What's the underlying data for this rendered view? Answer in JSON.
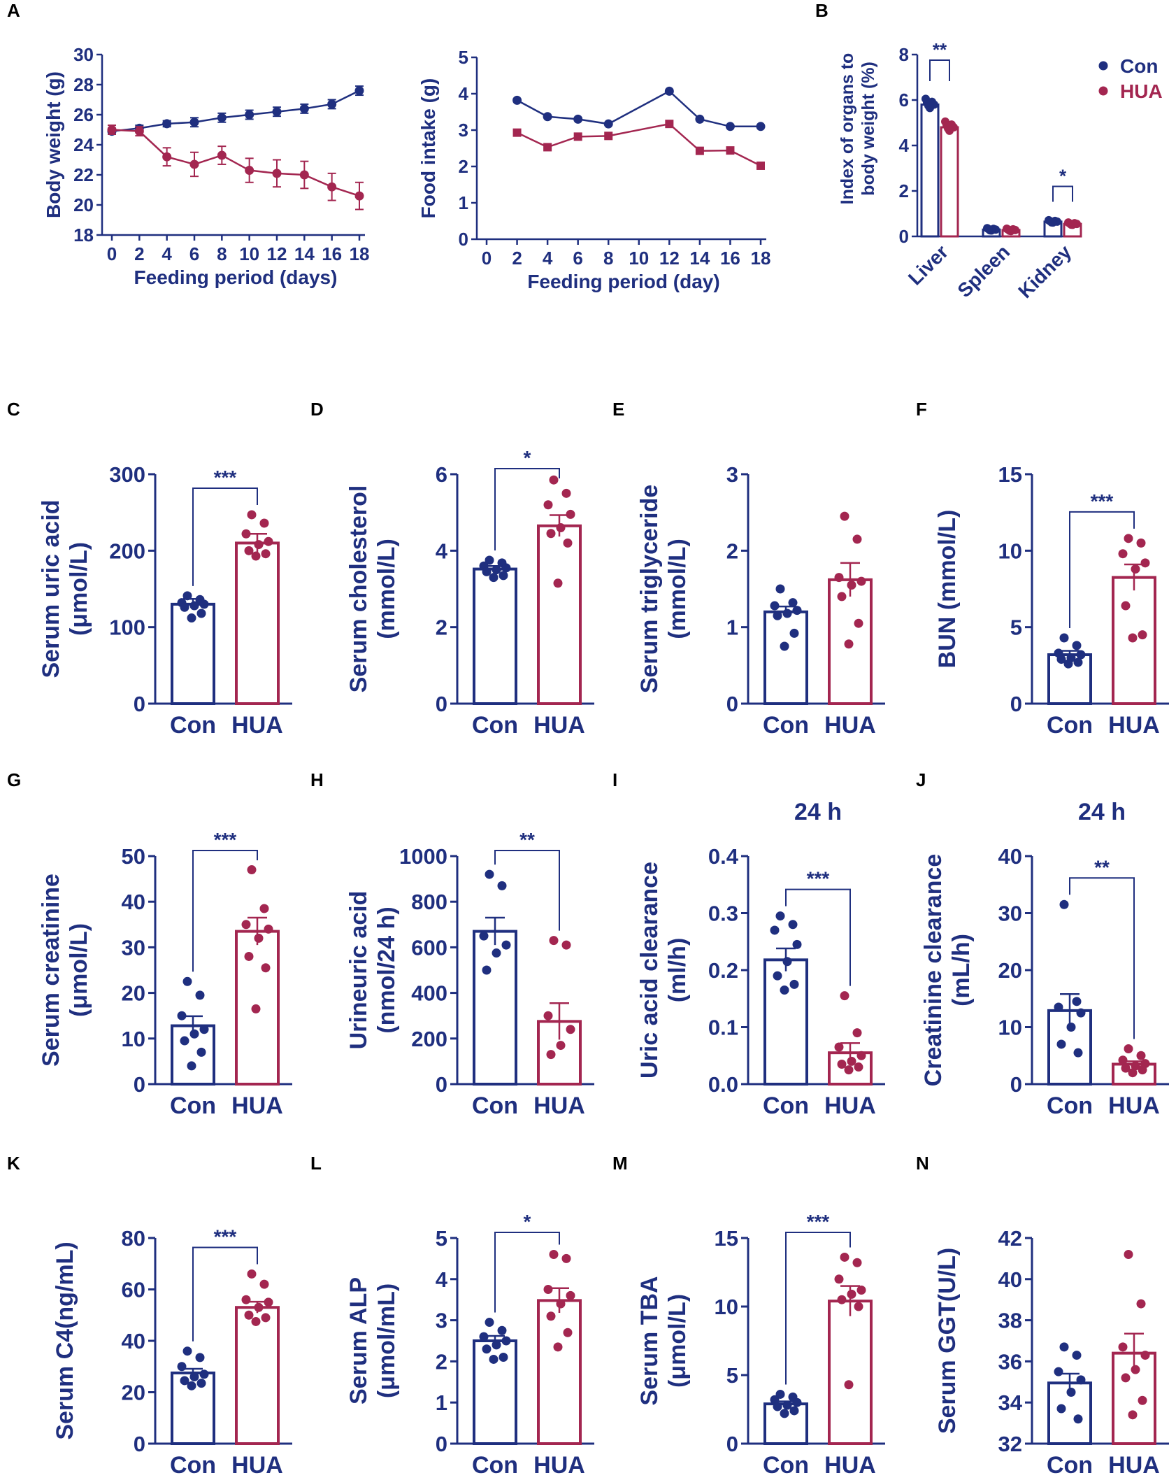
{
  "colors": {
    "con": "#1f2f7f",
    "hua": "#a32650",
    "text": "#1f2f7f",
    "letter": "#000000"
  },
  "panel_letters": [
    "A",
    "B",
    "C",
    "D",
    "E",
    "F",
    "G",
    "H",
    "I",
    "J",
    "K",
    "L",
    "M",
    "N"
  ],
  "legend": {
    "con": "Con",
    "hua": "HUA"
  },
  "chart_data": [
    {
      "id": "A1",
      "type": "line",
      "xlabel": "Feeding period (days)",
      "ylabel": "Body weight (g)",
      "ylim": [
        18,
        30
      ],
      "yticks": [
        18,
        20,
        22,
        24,
        26,
        28,
        30
      ],
      "xlim": [
        0,
        18
      ],
      "xticks": [
        0,
        2,
        4,
        6,
        8,
        10,
        12,
        14,
        16,
        18
      ],
      "x": [
        0,
        2,
        4,
        6,
        8,
        10,
        12,
        14,
        16,
        18
      ],
      "series": [
        {
          "group": "con",
          "values": [
            24.9,
            25.1,
            25.4,
            25.5,
            25.8,
            26.0,
            26.2,
            26.4,
            26.7,
            27.6
          ],
          "err": [
            0.2,
            0.2,
            0.2,
            0.3,
            0.3,
            0.3,
            0.3,
            0.3,
            0.3,
            0.3
          ]
        },
        {
          "group": "hua",
          "values": [
            25.0,
            24.9,
            23.2,
            22.7,
            23.3,
            22.3,
            22.1,
            22.0,
            21.2,
            20.6
          ],
          "err": [
            0.3,
            0.3,
            0.6,
            0.8,
            0.6,
            0.8,
            0.9,
            0.9,
            0.9,
            0.9
          ]
        }
      ]
    },
    {
      "id": "A2",
      "type": "line",
      "xlabel": "Feeding period (day)",
      "ylabel": "Food intake (g)",
      "ylim": [
        0,
        5
      ],
      "yticks": [
        0,
        1,
        2,
        3,
        4,
        5
      ],
      "xlim": [
        0,
        18
      ],
      "xticks": [
        0,
        2,
        4,
        6,
        8,
        10,
        12,
        14,
        16,
        18
      ],
      "x": [
        2,
        4,
        6,
        8,
        12,
        14,
        16,
        18
      ],
      "series": [
        {
          "group": "con",
          "values": [
            3.82,
            3.37,
            3.3,
            3.17,
            4.07,
            3.3,
            3.1,
            3.1
          ]
        },
        {
          "group": "hua",
          "values": [
            2.93,
            2.53,
            2.82,
            2.84,
            3.17,
            2.43,
            2.44,
            2.02
          ]
        }
      ]
    },
    {
      "id": "B",
      "type": "bar",
      "ylabel": "Index of organs to\nbody weight (%)",
      "ylim": [
        0,
        8
      ],
      "yticks": [
        0,
        2,
        4,
        6,
        8
      ],
      "categories": [
        "Liver",
        "Spleen",
        "Kidney"
      ],
      "series": [
        {
          "group": "con",
          "values": [
            5.8,
            0.3,
            0.65
          ]
        },
        {
          "group": "hua",
          "values": [
            4.8,
            0.28,
            0.55
          ]
        }
      ],
      "significance": [
        {
          "category": "Liver",
          "label": "**"
        },
        {
          "category": "Kidney",
          "label": "*"
        }
      ]
    },
    {
      "id": "C",
      "type": "bar",
      "ylabel": "Serum uric acid\n(μmol/L)",
      "ylim": [
        0,
        300
      ],
      "yticks": [
        0,
        100,
        200,
        300
      ],
      "categories": [
        "Con",
        "HUA"
      ],
      "means": [
        130,
        210
      ],
      "sem": [
        7,
        12
      ],
      "sig": "***",
      "points": [
        [
          141,
          136,
          132,
          130,
          128,
          126,
          118,
          112
        ],
        [
          247,
          236,
          222,
          212,
          208,
          200,
          196,
          193
        ]
      ]
    },
    {
      "id": "D",
      "type": "bar",
      "ylabel": "Serum cholesterol\n(mmol/L)",
      "ylim": [
        0,
        6
      ],
      "yticks": [
        0,
        2,
        4,
        6
      ],
      "categories": [
        "Con",
        "HUA"
      ],
      "means": [
        3.52,
        4.65
      ],
      "sem": [
        0.08,
        0.28
      ],
      "sig": "*",
      "points": [
        [
          3.75,
          3.68,
          3.6,
          3.55,
          3.5,
          3.45,
          3.35,
          3.3
        ],
        [
          5.85,
          5.5,
          5.2,
          4.95,
          4.6,
          4.45,
          4.2,
          3.15
        ]
      ]
    },
    {
      "id": "E",
      "type": "bar",
      "ylabel": "Serum triglyceride\n(mmol/L)",
      "ylim": [
        0,
        3
      ],
      "yticks": [
        0,
        1,
        2,
        3
      ],
      "categories": [
        "Con",
        "HUA"
      ],
      "means": [
        1.2,
        1.62
      ],
      "sem": [
        0.07,
        0.22
      ],
      "sig": "",
      "points": [
        [
          1.5,
          1.32,
          1.28,
          1.22,
          1.18,
          1.15,
          0.92,
          0.75
        ],
        [
          2.45,
          2.15,
          1.65,
          1.6,
          1.55,
          1.4,
          1.05,
          0.78
        ]
      ]
    },
    {
      "id": "F",
      "type": "bar",
      "ylabel": "BUN (mmol/L)",
      "ylim": [
        0,
        15
      ],
      "yticks": [
        0,
        5,
        10,
        15
      ],
      "categories": [
        "Con",
        "HUA"
      ],
      "means": [
        3.2,
        8.25
      ],
      "sem": [
        0.25,
        0.85
      ],
      "sig": "***",
      "points": [
        [
          4.3,
          3.8,
          3.3,
          3.2,
          3.0,
          2.9,
          2.7,
          2.6
        ],
        [
          10.8,
          10.5,
          9.8,
          9.2,
          8.8,
          6.4,
          4.5,
          4.3
        ]
      ]
    },
    {
      "id": "G",
      "type": "bar",
      "ylabel": "Serum creatinine\n(μmol/L)",
      "ylim": [
        0,
        50
      ],
      "yticks": [
        0,
        10,
        20,
        30,
        40,
        50
      ],
      "categories": [
        "Con",
        "HUA"
      ],
      "means": [
        12.8,
        33.5
      ],
      "sem": [
        2.1,
        3.0
      ],
      "sig": "***",
      "points": [
        [
          22.5,
          19.5,
          15.0,
          12.0,
          11.0,
          9.5,
          7.0,
          4.0
        ],
        [
          47.0,
          38.5,
          35.0,
          34.0,
          32.0,
          28.0,
          25.5,
          16.5
        ]
      ]
    },
    {
      "id": "H",
      "type": "bar",
      "ylabel": "Urineuric acid\n(nmol/24 h)",
      "ylim": [
        0,
        1000
      ],
      "yticks": [
        0,
        200,
        400,
        600,
        800,
        1000
      ],
      "categories": [
        "Con",
        "HUA"
      ],
      "means": [
        670,
        275
      ],
      "sem": [
        60,
        80
      ],
      "sig": "**",
      "points": [
        [
          920,
          870,
          650,
          610,
          575,
          500
        ],
        [
          630,
          610,
          300,
          240,
          170,
          130
        ]
      ]
    },
    {
      "id": "I",
      "type": "bar",
      "title": "24 h",
      "ylabel": "Uric acid clearance\n(ml/h)",
      "ylim": [
        0,
        0.4
      ],
      "yticks": [
        0.0,
        0.1,
        0.2,
        0.3,
        0.4
      ],
      "ytick_decimals": 1,
      "categories": [
        "Con",
        "HUA"
      ],
      "means": [
        0.218,
        0.055
      ],
      "sem": [
        0.02,
        0.017
      ],
      "sig": "***",
      "points": [
        [
          0.295,
          0.28,
          0.27,
          0.245,
          0.215,
          0.19,
          0.175,
          0.165
        ],
        [
          0.155,
          0.09,
          0.065,
          0.05,
          0.04,
          0.035,
          0.03,
          0.025
        ]
      ]
    },
    {
      "id": "J",
      "type": "bar",
      "title": "24 h",
      "ylabel": "Creatinine clearance\n(mL/h)",
      "ylim": [
        0,
        40
      ],
      "yticks": [
        0,
        10,
        20,
        30,
        40
      ],
      "categories": [
        "Con",
        "HUA"
      ],
      "means": [
        12.9,
        3.5
      ],
      "sem": [
        2.9,
        0.5
      ],
      "sig": "**",
      "points": [
        [
          31.5,
          14.5,
          13.5,
          12.5,
          10.0,
          7.0,
          5.5
        ],
        [
          6.2,
          5.0,
          4.2,
          3.6,
          3.2,
          2.8,
          2.5,
          2.0
        ]
      ]
    },
    {
      "id": "K",
      "type": "bar",
      "ylabel": "Serum C4(ng/mL)",
      "ylim": [
        0,
        80
      ],
      "yticks": [
        0,
        20,
        40,
        60,
        80
      ],
      "categories": [
        "Con",
        "HUA"
      ],
      "means": [
        27.5,
        53.0
      ],
      "sem": [
        1.6,
        2.2
      ],
      "sig": "***",
      "points": [
        [
          36.0,
          33.5,
          30.0,
          27.0,
          26.0,
          24.5,
          23.5,
          22.5
        ],
        [
          66.0,
          62.0,
          56.0,
          55.0,
          53.0,
          50.0,
          49.0,
          47.5
        ]
      ]
    },
    {
      "id": "L",
      "type": "bar",
      "ylabel": "Serum ALP\n(μmol/mL)",
      "ylim": [
        0,
        5
      ],
      "yticks": [
        0,
        1,
        2,
        3,
        4,
        5
      ],
      "categories": [
        "Con",
        "HUA"
      ],
      "means": [
        2.5,
        3.48
      ],
      "sem": [
        0.12,
        0.3
      ],
      "sig": "*",
      "points": [
        [
          2.95,
          2.75,
          2.6,
          2.5,
          2.4,
          2.3,
          2.1,
          2.05
        ],
        [
          4.6,
          4.5,
          3.75,
          3.6,
          3.4,
          3.1,
          2.7,
          2.35
        ]
      ]
    },
    {
      "id": "M",
      "type": "bar",
      "ylabel": "Serum TBA\n(μmol/L)",
      "ylim": [
        0,
        15
      ],
      "yticks": [
        0,
        5,
        10,
        15
      ],
      "categories": [
        "Con",
        "HUA"
      ],
      "means": [
        2.9,
        10.4
      ],
      "sem": [
        0.18,
        1.1
      ],
      "sig": "***",
      "points": [
        [
          3.6,
          3.4,
          3.2,
          3.0,
          2.8,
          2.7,
          2.4,
          2.2
        ],
        [
          13.6,
          13.2,
          12.0,
          11.2,
          10.9,
          10.5,
          10.0,
          4.3
        ]
      ]
    },
    {
      "id": "N",
      "type": "bar",
      "ylabel": "Serum GGT(U/L)",
      "ylim": [
        32,
        42
      ],
      "yticks": [
        32,
        34,
        36,
        38,
        40,
        42
      ],
      "categories": [
        "Con",
        "HUA"
      ],
      "means": [
        34.95,
        36.4
      ],
      "sem": [
        0.45,
        0.95
      ],
      "sig": "",
      "points": [
        [
          36.7,
          36.3,
          35.5,
          35.1,
          34.5,
          33.7,
          33.2
        ],
        [
          41.2,
          38.8,
          36.7,
          36.3,
          35.6,
          35.2,
          34.1,
          33.4
        ]
      ]
    }
  ]
}
